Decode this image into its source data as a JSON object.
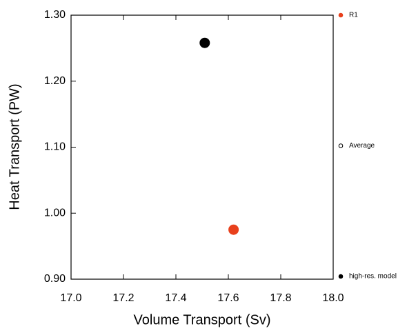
{
  "chart_data": {
    "type": "scatter",
    "xlabel": "Volume Transport (Sv)",
    "ylabel": "Heat Transport (PW)",
    "xlim": [
      17.0,
      18.0
    ],
    "ylim": [
      0.9,
      1.3
    ],
    "xticks": [
      {
        "value": 17.0,
        "label": "17.0"
      },
      {
        "value": 17.2,
        "label": "17.2"
      },
      {
        "value": 17.4,
        "label": "17.4"
      },
      {
        "value": 17.6,
        "label": "17.6"
      },
      {
        "value": 17.8,
        "label": "17.8"
      },
      {
        "value": 18.0,
        "label": "18.0"
      }
    ],
    "yticks": [
      {
        "value": 0.9,
        "label": "0.90"
      },
      {
        "value": 1.0,
        "label": "1.00"
      },
      {
        "value": 1.1,
        "label": "1.10"
      },
      {
        "value": 1.2,
        "label": "1.20"
      },
      {
        "value": 1.3,
        "label": "1.30"
      }
    ],
    "legend": "right",
    "series": [
      {
        "name": "R1",
        "color": "#e8401c",
        "hollow": false,
        "x": [
          17.62
        ],
        "values": [
          0.975
        ]
      },
      {
        "name": "Average",
        "color": "#000000",
        "hollow": true,
        "x": [],
        "values": []
      },
      {
        "name": "high-res. model",
        "color": "#000000",
        "hollow": false,
        "x": [
          17.51
        ],
        "values": [
          1.258
        ]
      }
    ]
  }
}
